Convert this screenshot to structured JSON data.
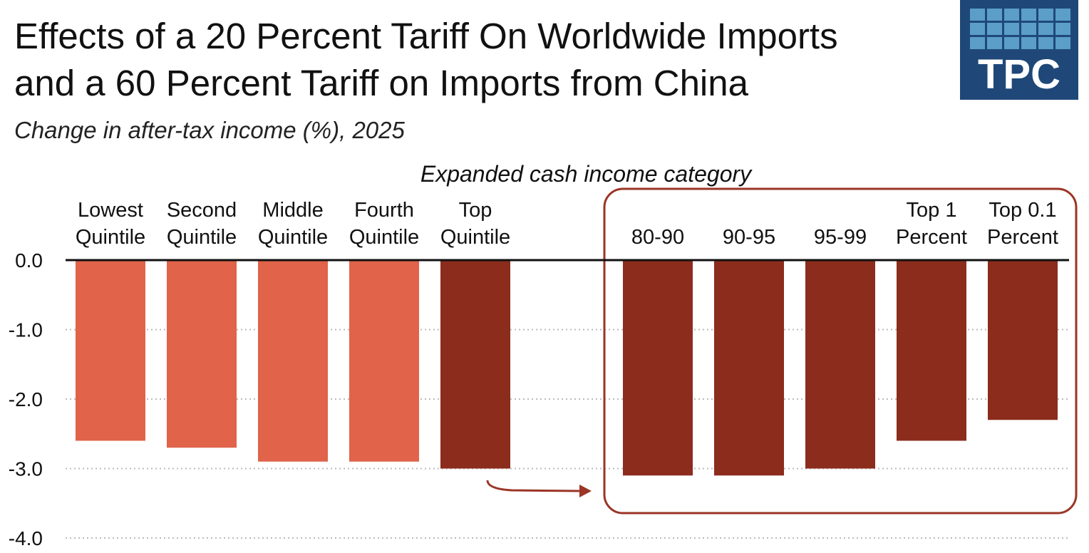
{
  "header": {
    "title_line1": "Effects of a 20 Percent Tariff On Worldwide Imports",
    "title_line2": "and a 60 Percent Tariff on Imports from China",
    "subtitle": "Change in after-tax income (%), 2025"
  },
  "logo": {
    "text": "TPC",
    "background": "#1f4878",
    "grid_color": "#5b9ec7"
  },
  "colors": {
    "quintile_bar": "#e0634a",
    "top_bar": "#8b2c1c",
    "callout": "#9b3526",
    "gridline": "#bbbbbb"
  },
  "chart_data": {
    "type": "bar",
    "title": "Effects of a 20 Percent Tariff On Worldwide Imports and a 60 Percent Tariff on Imports from China",
    "subtitle": "Change in after-tax income (%), 2025",
    "xlabel": "Expanded cash income category",
    "ylabel": "",
    "ylim": [
      -4.0,
      0.0
    ],
    "yticks": [
      "0.0",
      "-1.0",
      "-2.0",
      "-3.0",
      "-4.0"
    ],
    "grid": true,
    "categories": [
      {
        "lines": [
          "Lowest",
          "Quintile"
        ],
        "value": -2.6,
        "group": "quintile"
      },
      {
        "lines": [
          "Second",
          "Quintile"
        ],
        "value": -2.7,
        "group": "quintile"
      },
      {
        "lines": [
          "Middle",
          "Quintile"
        ],
        "value": -2.9,
        "group": "quintile"
      },
      {
        "lines": [
          "Fourth",
          "Quintile"
        ],
        "value": -2.9,
        "group": "quintile"
      },
      {
        "lines": [
          "Top",
          "Quintile"
        ],
        "value": -3.0,
        "group": "top"
      },
      {
        "lines": [
          "",
          "80-90"
        ],
        "value": -3.1,
        "group": "top"
      },
      {
        "lines": [
          "",
          "90-95"
        ],
        "value": -3.1,
        "group": "top"
      },
      {
        "lines": [
          "",
          "95-99"
        ],
        "value": -3.0,
        "group": "top"
      },
      {
        "lines": [
          "Top 1",
          "Percent"
        ],
        "value": -2.6,
        "group": "top"
      },
      {
        "lines": [
          "Top 0.1",
          "Percent"
        ],
        "value": -2.3,
        "group": "top"
      }
    ]
  }
}
